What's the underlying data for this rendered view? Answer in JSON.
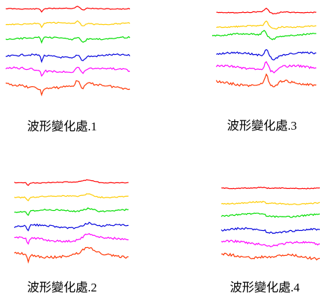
{
  "colors": [
    "#ff0000",
    "#ffcc00",
    "#00dd00",
    "#0000dd",
    "#ff00ff",
    "#ff3300"
  ],
  "panels": [
    {
      "id": "p1",
      "caption_text": "波形變化處",
      "caption_num": ".1",
      "icon": "waveform-group-1"
    },
    {
      "id": "p2",
      "caption_text": "波形變化處",
      "caption_num": ".2",
      "icon": "waveform-group-2"
    },
    {
      "id": "p3",
      "caption_text": "波形變化處",
      "caption_num": ".3",
      "icon": "waveform-group-3"
    },
    {
      "id": "p4",
      "caption_text": "波形變化處",
      "caption_num": ".4",
      "icon": "waveform-group-4"
    }
  ]
}
